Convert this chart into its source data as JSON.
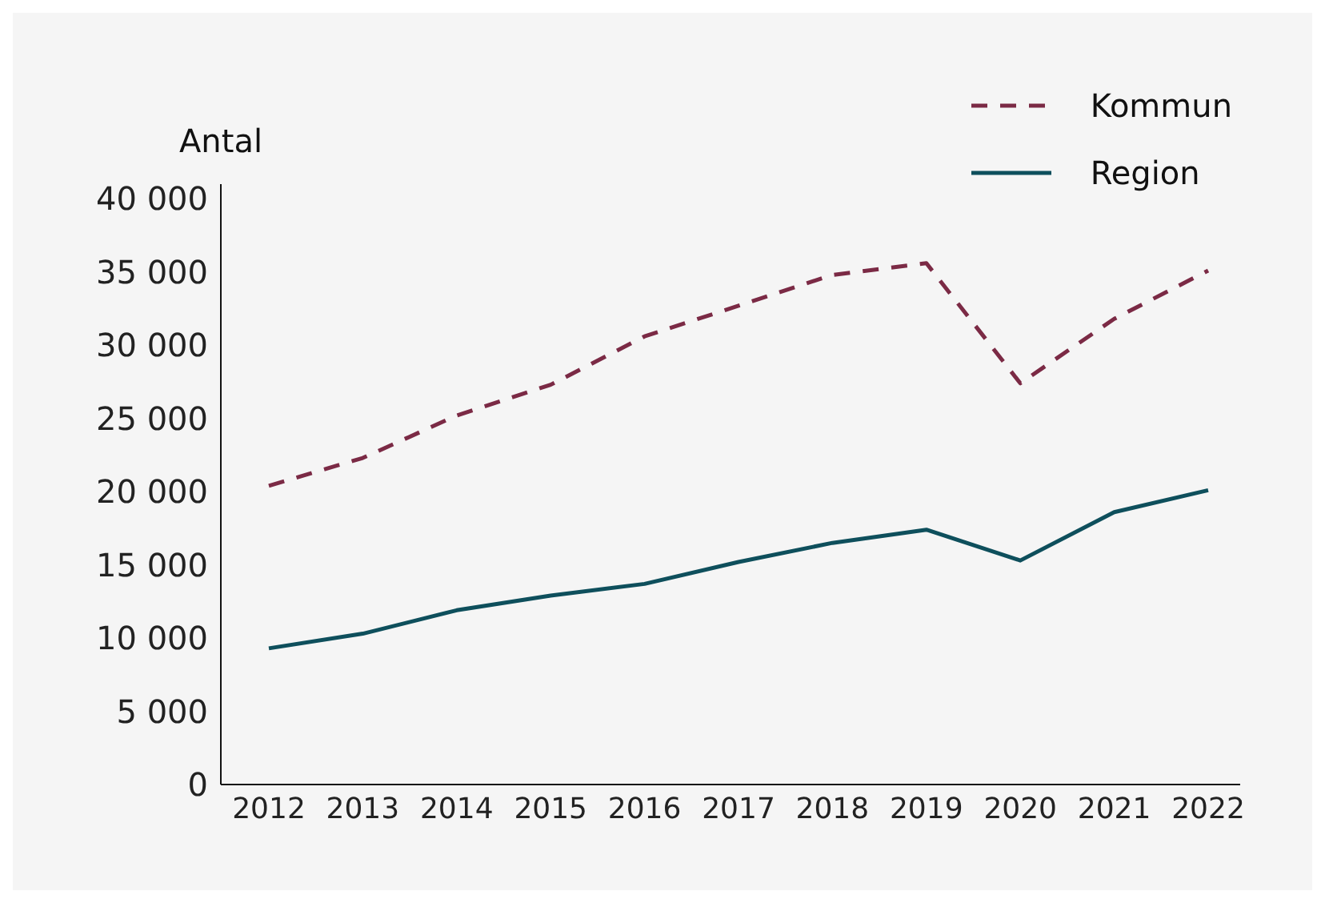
{
  "chart_data": {
    "type": "line",
    "ylabel": "Antal",
    "categories": [
      "2012",
      "2013",
      "2014",
      "2015",
      "2016",
      "2017",
      "2018",
      "2019",
      "2020",
      "2021",
      "2022"
    ],
    "series": [
      {
        "name": "Kommun",
        "color": "#7b2a45",
        "line_style": "dashed",
        "values": [
          20400,
          22300,
          25200,
          27300,
          30600,
          32700,
          34800,
          35600,
          27400,
          31800,
          35100
        ]
      },
      {
        "name": "Region",
        "color": "#0e4f5c",
        "line_style": "solid",
        "values": [
          9300,
          10300,
          11900,
          12900,
          13700,
          15200,
          16500,
          17400,
          15300,
          18600,
          20100
        ]
      }
    ],
    "ylim": [
      0,
      41000
    ],
    "yticks": [
      {
        "value": 0,
        "label": "0"
      },
      {
        "value": 5000,
        "label": "5 000"
      },
      {
        "value": 10000,
        "label": "10 000"
      },
      {
        "value": 15000,
        "label": "15 000"
      },
      {
        "value": 20000,
        "label": "20 000"
      },
      {
        "value": 25000,
        "label": "25 000"
      },
      {
        "value": 30000,
        "label": "30 000"
      },
      {
        "value": 35000,
        "label": "35 000"
      },
      {
        "value": 40000,
        "label": "40 000"
      }
    ],
    "grid": false,
    "legend": "top right",
    "marker": "none"
  }
}
